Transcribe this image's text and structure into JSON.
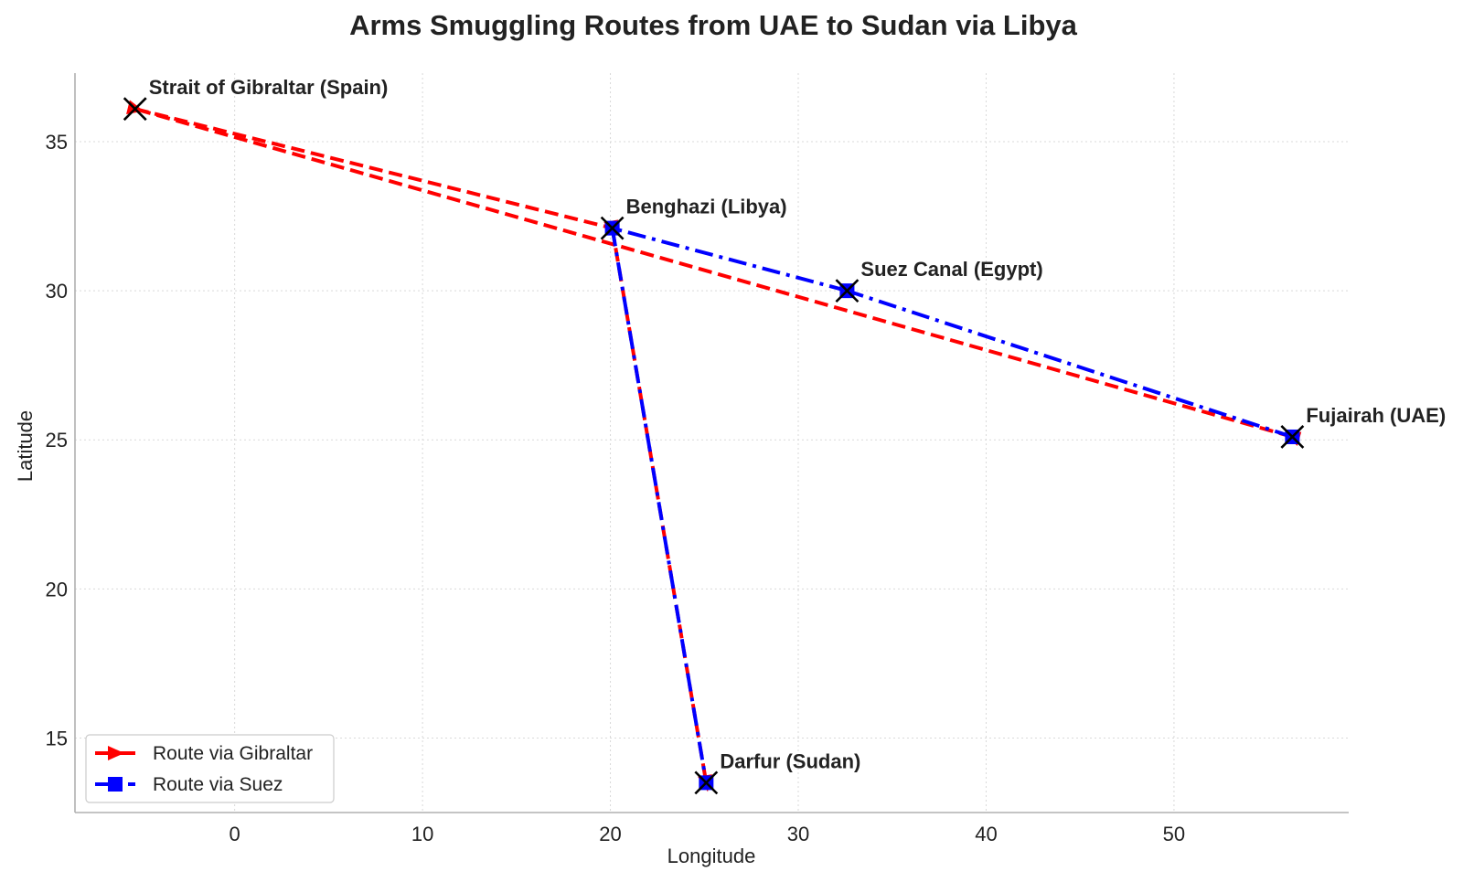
{
  "chart_data": {
    "type": "line",
    "title": "Arms Smuggling Routes from UAE to Sudan via Libya",
    "xlabel": "Longitude",
    "ylabel": "Latitude",
    "xlim": [
      -8.5,
      59.3
    ],
    "ylim": [
      12.5,
      37.3
    ],
    "xticks": [
      0,
      10,
      20,
      30,
      40,
      50
    ],
    "yticks": [
      15,
      20,
      25,
      30,
      35
    ],
    "grid": true,
    "legend_position": "lower-left",
    "locations": [
      {
        "name": "Strait of Gibraltar (Spain)",
        "lon": -5.3,
        "lat": 36.1
      },
      {
        "name": "Benghazi (Libya)",
        "lon": 20.1,
        "lat": 32.1
      },
      {
        "name": "Suez Canal (Egypt)",
        "lon": 32.6,
        "lat": 30.0
      },
      {
        "name": "Fujairah (UAE)",
        "lon": 56.3,
        "lat": 25.1
      },
      {
        "name": "Darfur (Sudan)",
        "lon": 25.1,
        "lat": 13.5
      }
    ],
    "series": [
      {
        "name": "Route via Gibraltar",
        "color": "#ff0000",
        "style": "dashed",
        "marker": "arrow",
        "lon": [
          56.3,
          -5.3,
          20.1,
          25.1
        ],
        "lat": [
          25.1,
          36.1,
          32.1,
          13.5
        ]
      },
      {
        "name": "Route via Suez",
        "color": "#0000ff",
        "style": "dashdot",
        "marker": "square",
        "lon": [
          56.3,
          32.6,
          20.1,
          25.1
        ],
        "lat": [
          25.1,
          30.0,
          32.1,
          13.5
        ]
      }
    ]
  }
}
